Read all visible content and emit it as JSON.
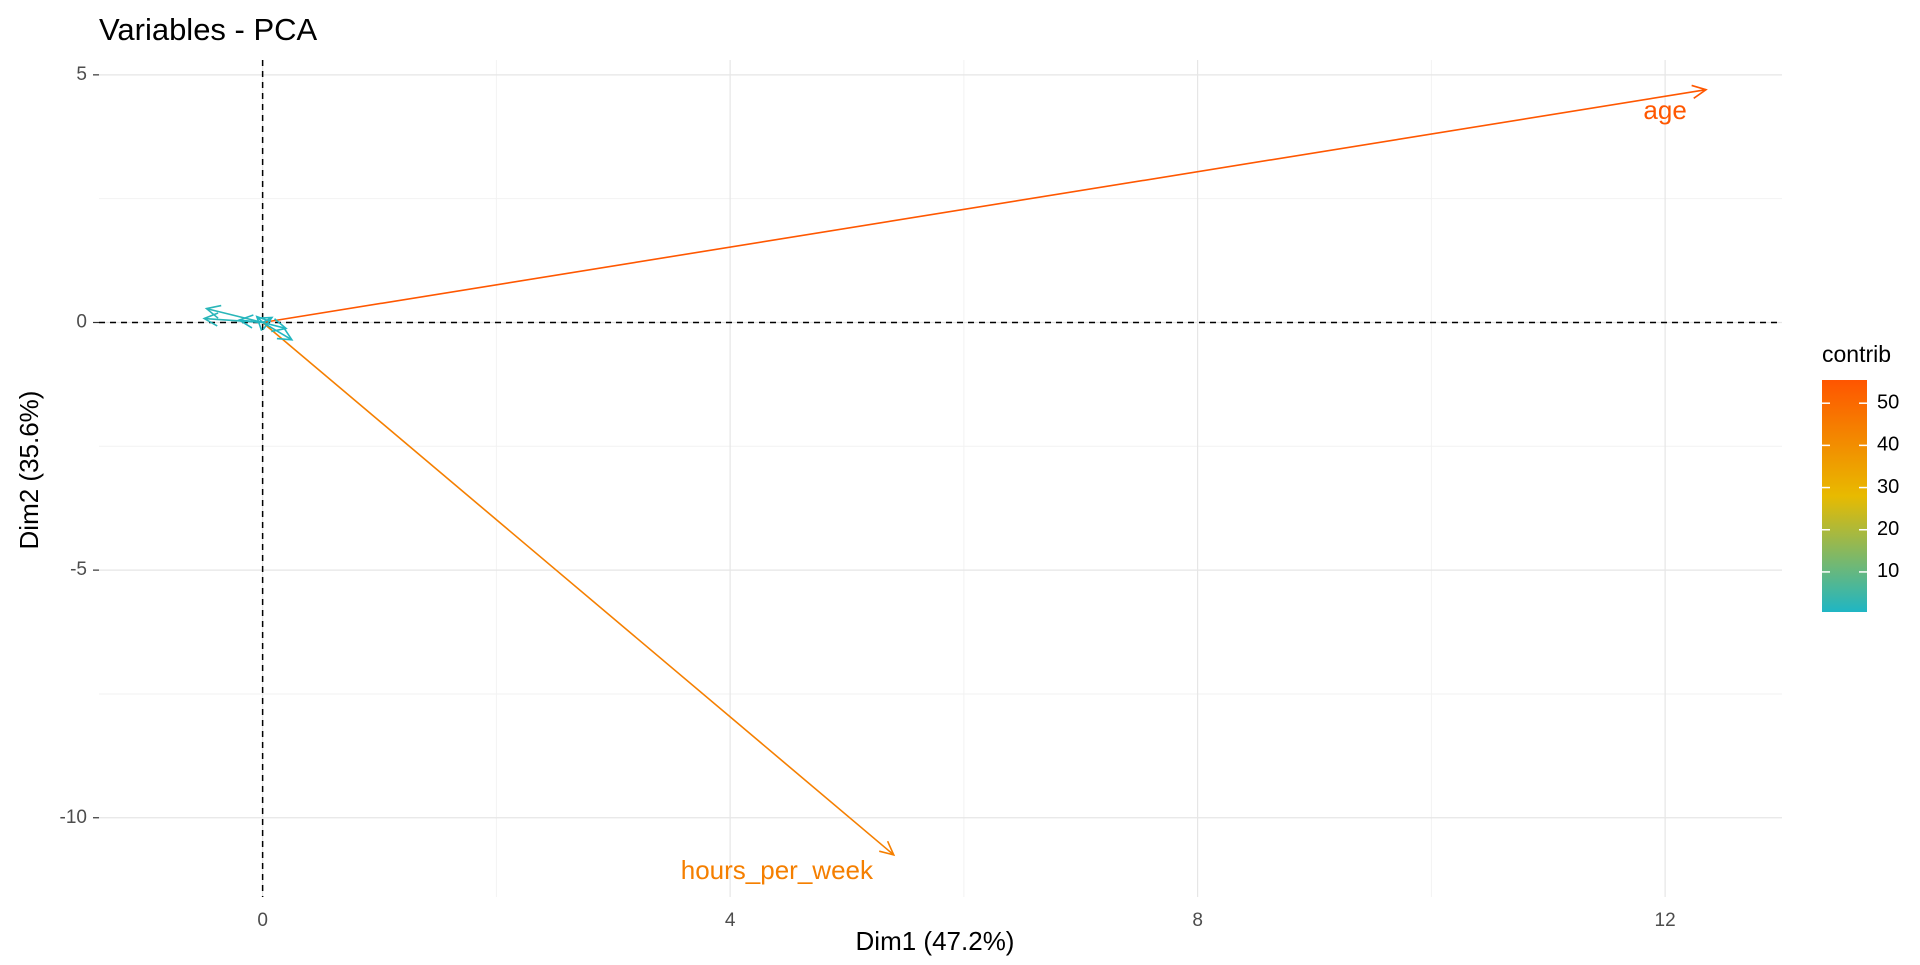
{
  "chart_data": {
    "type": "arrow-biplot",
    "title": "Variables - PCA",
    "xlabel": "Dim1 (47.2%)",
    "ylabel": "Dim2 (35.6%)",
    "xlim": [
      -1.4,
      13.0
    ],
    "ylim": [
      -11.6,
      5.3
    ],
    "xticks": [
      0,
      4,
      8,
      12
    ],
    "yticks": [
      5,
      0,
      -5,
      -10
    ],
    "grid": true,
    "reference_lines": {
      "x": 0,
      "y": 0,
      "style": "dashed"
    },
    "variables": [
      {
        "label": "age",
        "x": 12.35,
        "y": 4.7,
        "contrib": 55,
        "label_x": 12.0,
        "label_y": 4.25
      },
      {
        "label": "hours_per_week",
        "x": 5.4,
        "y": -10.75,
        "contrib": 44,
        "label_x": 4.4,
        "label_y": -11.1
      },
      {
        "label": "",
        "x": -0.48,
        "y": 0.28,
        "contrib": 2
      },
      {
        "label": "",
        "x": -0.5,
        "y": 0.08,
        "contrib": 2
      },
      {
        "label": "",
        "x": -0.2,
        "y": 0.05,
        "contrib": 1
      },
      {
        "label": "",
        "x": -0.05,
        "y": 0.12,
        "contrib": 1
      },
      {
        "label": "",
        "x": 0.25,
        "y": -0.35,
        "contrib": 1
      },
      {
        "label": "",
        "x": 0.2,
        "y": -0.12,
        "contrib": 1
      },
      {
        "label": "",
        "x": 0.08,
        "y": 0.1,
        "contrib": 1
      }
    ],
    "legend": {
      "title": "contrib",
      "position": "right",
      "ticks": [
        10,
        20,
        30,
        40,
        50
      ],
      "range": [
        0.5,
        55.5
      ],
      "gradient": [
        "#1FB6C4",
        "#E8BA00",
        "#FF5500"
      ]
    }
  }
}
